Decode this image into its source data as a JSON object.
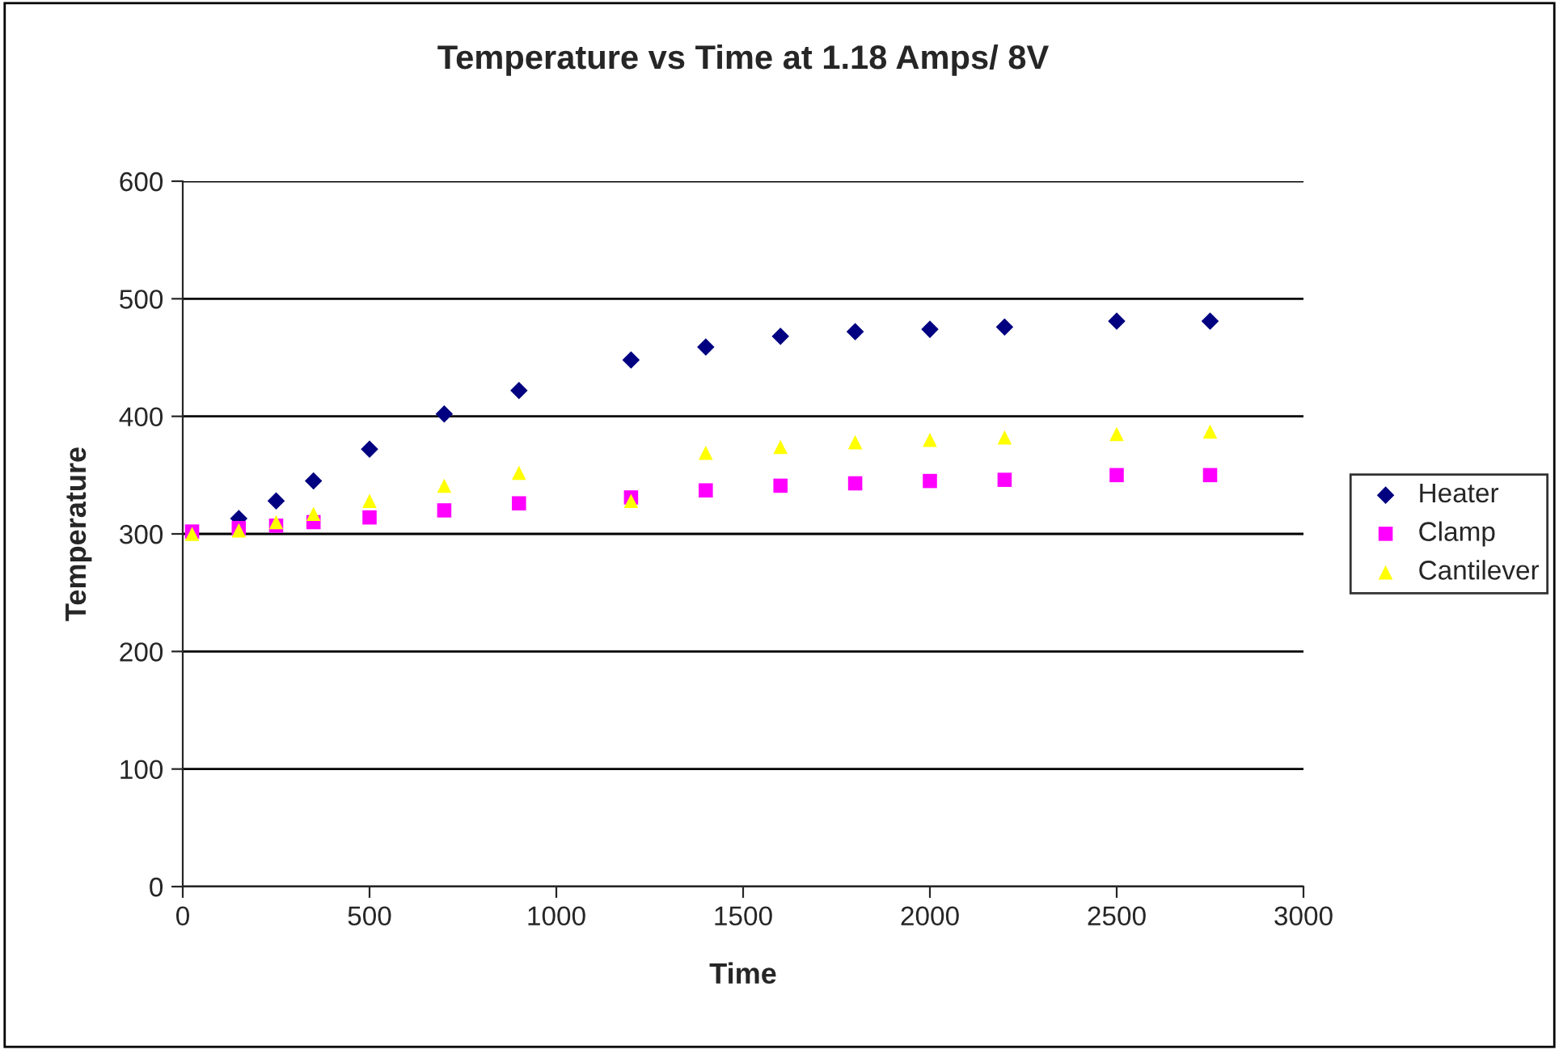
{
  "chart_data": {
    "type": "scatter",
    "title": "Temperature vs Time at 1.18 Amps/ 8V",
    "xlabel": "Time",
    "ylabel": "Temperature",
    "x": [
      25,
      150,
      250,
      350,
      500,
      700,
      900,
      1200,
      1400,
      1600,
      1800,
      2000,
      2200,
      2500,
      2750
    ],
    "series": [
      {
        "name": "Heater",
        "color": "#000080",
        "marker": "diamond",
        "values": [
          null,
          313,
          328,
          345,
          372,
          402,
          422,
          448,
          459,
          468,
          472,
          474,
          476,
          481,
          481
        ]
      },
      {
        "name": "Clamp",
        "color": "#ff00ff",
        "marker": "square",
        "values": [
          302,
          305,
          307,
          310,
          314,
          320,
          326,
          331,
          337,
          341,
          343,
          345,
          346,
          350,
          350
        ]
      },
      {
        "name": "Cantilever",
        "color": "#ffff00",
        "marker": "triangle",
        "values": [
          300,
          303,
          310,
          317,
          328,
          341,
          352,
          328,
          369,
          374,
          378,
          380,
          382,
          385,
          387
        ]
      }
    ],
    "xlim": [
      0,
      3000
    ],
    "xticks": [
      0,
      500,
      1000,
      1500,
      2000,
      2500,
      3000
    ],
    "ylim": [
      0,
      600
    ],
    "yticks": [
      0,
      100,
      200,
      300,
      400,
      500,
      600
    ],
    "grid": "y",
    "legend": "right"
  }
}
